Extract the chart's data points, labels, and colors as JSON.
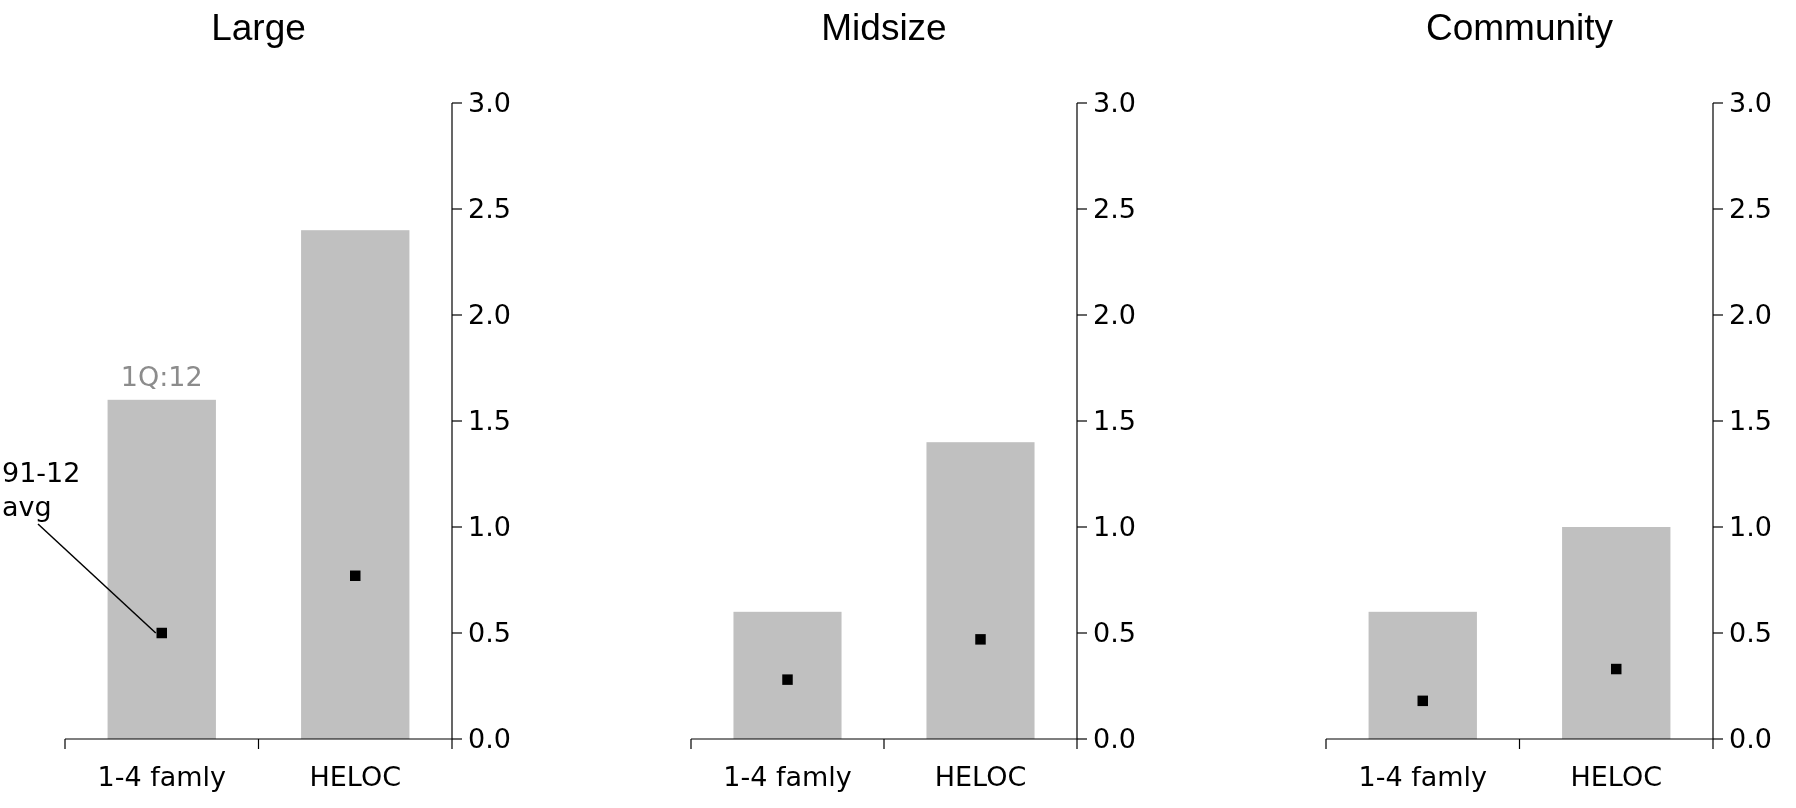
{
  "chart_data": [
    {
      "type": "bar",
      "title": "Large",
      "categories": [
        "1-4 famly",
        "HELOC"
      ],
      "series": [
        {
          "type": "bar",
          "color": "#c0c0c0",
          "values": [
            1.6,
            2.4
          ]
        },
        {
          "type": "scatter",
          "color": "#000000",
          "values": [
            0.5,
            0.77
          ]
        }
      ],
      "marker": "square",
      "ylim": [
        0,
        3
      ],
      "yticks": [
        {
          "value": 0,
          "label": "0.0"
        },
        {
          "value": 0.5,
          "label": "0.5"
        },
        {
          "value": 1,
          "label": "1.0"
        },
        {
          "value": 1.5,
          "label": "1.5"
        },
        {
          "value": 2,
          "label": "2.0"
        },
        {
          "value": 2.5,
          "label": "2.5"
        },
        {
          "value": 3,
          "label": "3.0"
        }
      ],
      "annotations": [
        {
          "text": "1Q:12",
          "x": "1-4 famly",
          "y": 1.6
        },
        {
          "text": "91-12\navg",
          "x": "1-4 famly",
          "y": 0.5
        }
      ]
    },
    {
      "type": "bar",
      "title": "Midsize",
      "categories": [
        "1-4 famly",
        "HELOC"
      ],
      "series": [
        {
          "type": "bar",
          "color": "#c0c0c0",
          "values": [
            0.6,
            1.4
          ]
        },
        {
          "type": "scatter",
          "color": "#000000",
          "values": [
            0.28,
            0.47
          ]
        }
      ],
      "marker": "square",
      "ylim": [
        0,
        3
      ],
      "yticks": [
        {
          "value": 0,
          "label": "0.0"
        },
        {
          "value": 0.5,
          "label": "0.5"
        },
        {
          "value": 1,
          "label": "1.0"
        },
        {
          "value": 1.5,
          "label": "1.5"
        },
        {
          "value": 2,
          "label": "2.0"
        },
        {
          "value": 2.5,
          "label": "2.5"
        },
        {
          "value": 3,
          "label": "3.0"
        }
      ]
    },
    {
      "type": "bar",
      "title": "Community",
      "categories": [
        "1-4 famly",
        "HELOC"
      ],
      "series": [
        {
          "type": "bar",
          "color": "#c0c0c0",
          "values": [
            0.6,
            1.0
          ]
        },
        {
          "type": "scatter",
          "color": "#000000",
          "values": [
            0.18,
            0.33
          ]
        }
      ],
      "marker": "square",
      "ylim": [
        0,
        3
      ],
      "yticks": [
        {
          "value": 0,
          "label": "0.0"
        },
        {
          "value": 0.5,
          "label": "0.5"
        },
        {
          "value": 1,
          "label": "1.0"
        },
        {
          "value": 1.5,
          "label": "1.5"
        },
        {
          "value": 2,
          "label": "2.0"
        },
        {
          "value": 2.5,
          "label": "2.5"
        },
        {
          "value": 3,
          "label": "3.0"
        }
      ]
    }
  ]
}
